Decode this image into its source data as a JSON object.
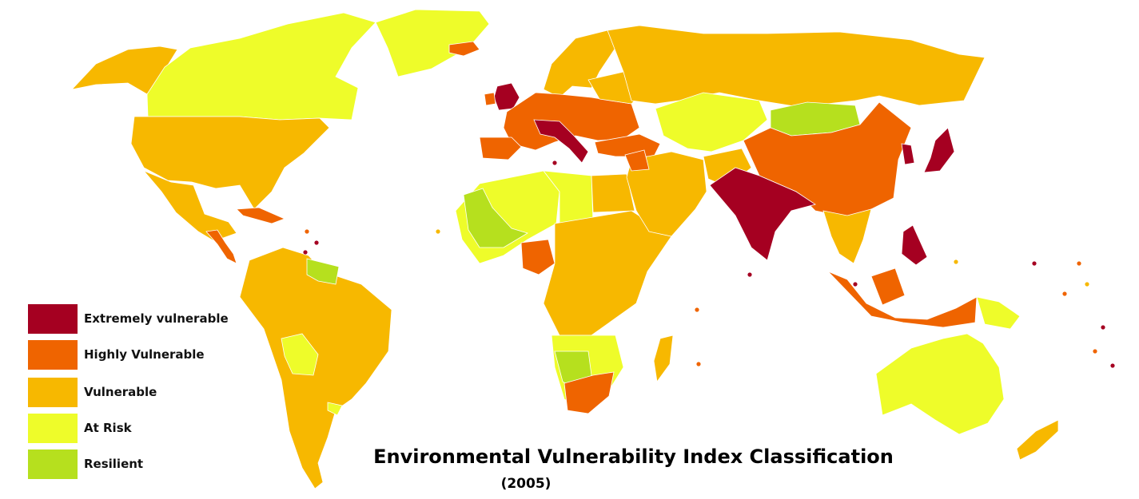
{
  "title": "Environmental Vulnerability Index Classification",
  "subtitle": "(2005)",
  "legend": [
    {
      "label": "Extremely vulnerable",
      "color": "#a50021"
    },
    {
      "label": "Highly Vulnerable",
      "color": "#ef6400"
    },
    {
      "label": "Vulnerable",
      "color": "#f7b800"
    },
    {
      "label": "At Risk",
      "color": "#eefc2a"
    },
    {
      "label": "Resilient",
      "color": "#b6e01e"
    }
  ]
}
